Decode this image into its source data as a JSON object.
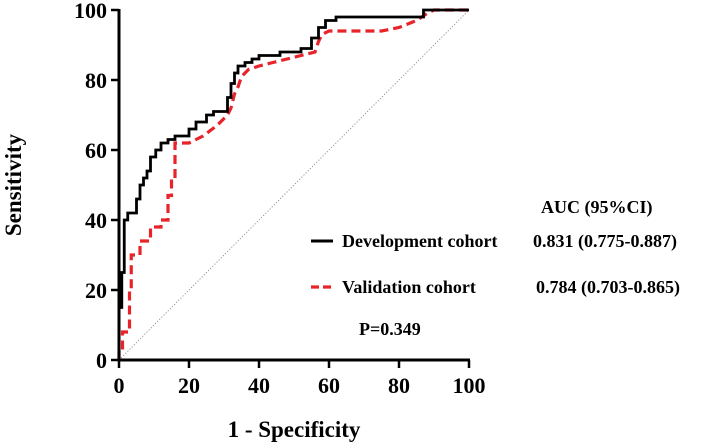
{
  "chart_data": {
    "type": "line",
    "xlabel": "1 - Specificity",
    "ylabel": "Sensitivity",
    "xlim": [
      0,
      100
    ],
    "ylim": [
      0,
      100
    ],
    "x_ticks": [
      "0",
      "20",
      "40",
      "60",
      "80",
      "100"
    ],
    "y_ticks": [
      "0",
      "20",
      "40",
      "60",
      "80",
      "100"
    ],
    "reference_line": true,
    "legend_header": "AUC (95%CI)",
    "p_value_label": "P=0.349",
    "series": [
      {
        "name": "Development cohort",
        "auc_label": "0.831 (0.775-0.887)",
        "color": "#000000",
        "dash": "solid",
        "points": [
          [
            0,
            0
          ],
          [
            0,
            15
          ],
          [
            0.8,
            15
          ],
          [
            0.8,
            25
          ],
          [
            1.5,
            25
          ],
          [
            1.5,
            40
          ],
          [
            2.5,
            40
          ],
          [
            2.5,
            42
          ],
          [
            5,
            42
          ],
          [
            5,
            46
          ],
          [
            6,
            46
          ],
          [
            6,
            50
          ],
          [
            7,
            50
          ],
          [
            7,
            52
          ],
          [
            8,
            52
          ],
          [
            8,
            54
          ],
          [
            9,
            54
          ],
          [
            9,
            58
          ],
          [
            10.5,
            58
          ],
          [
            10.5,
            60
          ],
          [
            12,
            60
          ],
          [
            12,
            62
          ],
          [
            14,
            62
          ],
          [
            14,
            63
          ],
          [
            16,
            63
          ],
          [
            16,
            64
          ],
          [
            20,
            64
          ],
          [
            20,
            66
          ],
          [
            22,
            66
          ],
          [
            22,
            68
          ],
          [
            25,
            68
          ],
          [
            25,
            70
          ],
          [
            27,
            70
          ],
          [
            27,
            71
          ],
          [
            31,
            71
          ],
          [
            31,
            75
          ],
          [
            32,
            75
          ],
          [
            32,
            79
          ],
          [
            33,
            79
          ],
          [
            33,
            82
          ],
          [
            34,
            82
          ],
          [
            34,
            84
          ],
          [
            36,
            84
          ],
          [
            36,
            85
          ],
          [
            38,
            85
          ],
          [
            38,
            86
          ],
          [
            40,
            86
          ],
          [
            40,
            87
          ],
          [
            46,
            87
          ],
          [
            46,
            88
          ],
          [
            52,
            88
          ],
          [
            52,
            89
          ],
          [
            55,
            89
          ],
          [
            55,
            92
          ],
          [
            57,
            92
          ],
          [
            57,
            95
          ],
          [
            59,
            95
          ],
          [
            59,
            97
          ],
          [
            62,
            97
          ],
          [
            62,
            98
          ],
          [
            87,
            98
          ],
          [
            87,
            100
          ],
          [
            100,
            100
          ]
        ]
      },
      {
        "name": "Validation cohort",
        "auc_label": "0.784 (0.703-0.865)",
        "color": "#e8232a",
        "dash": "dashed",
        "points": [
          [
            0,
            0
          ],
          [
            0,
            3
          ],
          [
            1,
            3
          ],
          [
            1,
            8
          ],
          [
            3,
            8
          ],
          [
            3,
            20
          ],
          [
            3.5,
            20
          ],
          [
            3.5,
            30
          ],
          [
            6,
            30
          ],
          [
            6,
            34
          ],
          [
            9,
            34
          ],
          [
            9,
            38
          ],
          [
            12,
            38
          ],
          [
            12,
            40
          ],
          [
            14,
            40
          ],
          [
            14,
            47
          ],
          [
            15,
            47
          ],
          [
            15,
            52
          ],
          [
            16,
            52
          ],
          [
            16,
            62
          ],
          [
            20,
            62
          ],
          [
            24,
            64
          ],
          [
            28,
            67
          ],
          [
            31,
            70
          ],
          [
            32,
            72
          ],
          [
            33,
            76
          ],
          [
            34,
            78
          ],
          [
            35,
            81
          ],
          [
            37,
            83
          ],
          [
            40,
            84
          ],
          [
            44,
            85
          ],
          [
            48,
            86
          ],
          [
            52,
            87
          ],
          [
            56,
            88
          ],
          [
            57,
            91
          ],
          [
            58,
            93
          ],
          [
            60,
            94
          ],
          [
            75,
            94
          ],
          [
            80,
            95
          ],
          [
            85,
            97
          ],
          [
            88,
            99
          ],
          [
            90,
            100
          ],
          [
            100,
            100
          ]
        ]
      }
    ]
  }
}
